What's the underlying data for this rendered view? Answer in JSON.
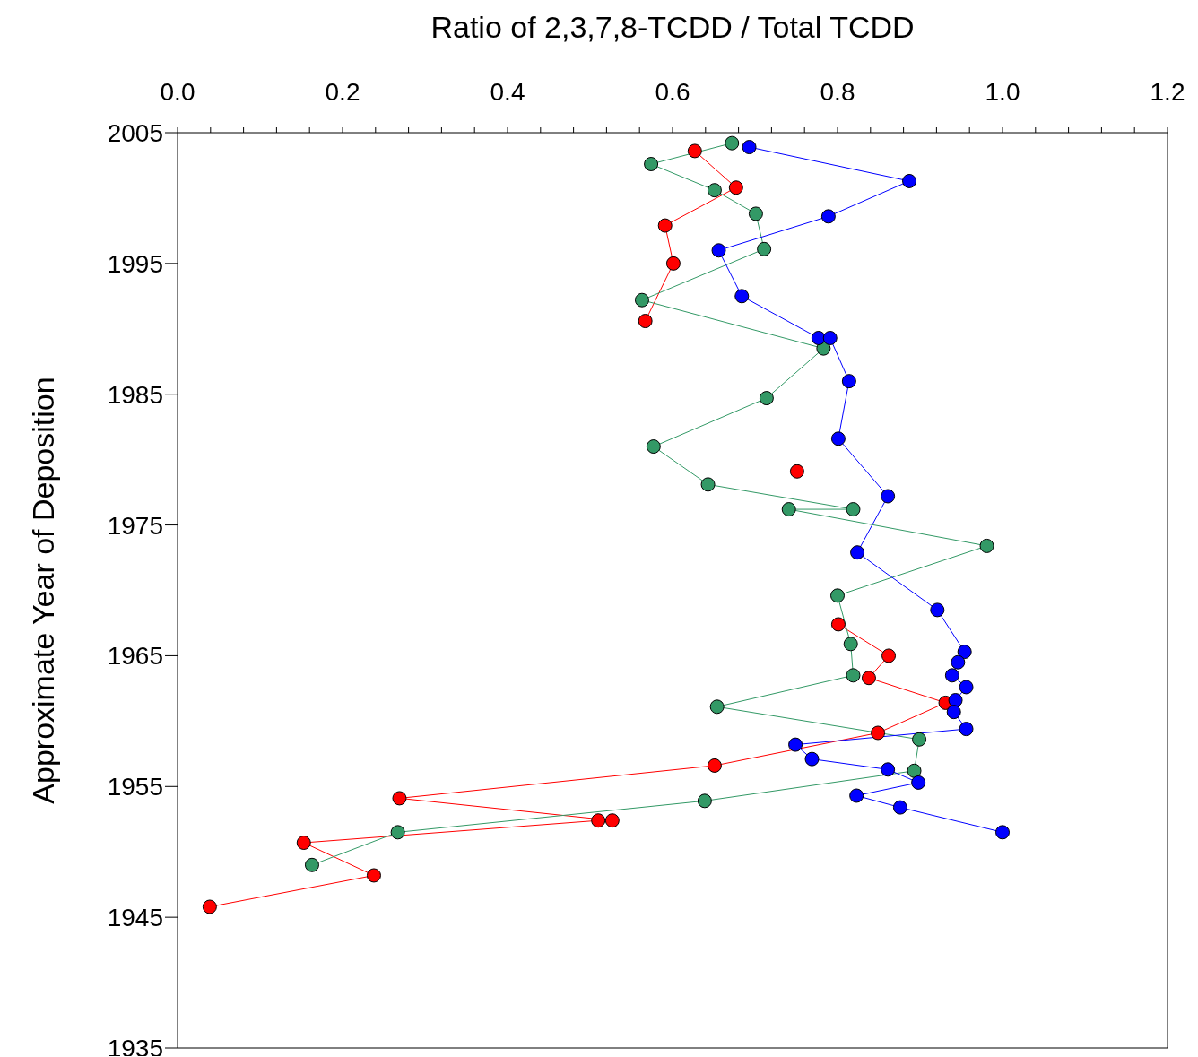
{
  "chart_data": {
    "type": "line",
    "xlabel": "Ratio of 2,3,7,8-TCDD / Total TCDD",
    "ylabel": "Approximate Year of Deposition",
    "marker": "circle",
    "line_style": "solid",
    "grid": false,
    "legend": false,
    "xlim": [
      0,
      1.2
    ],
    "ylim": [
      1935,
      2005
    ],
    "xticks": [
      {
        "value": 0,
        "label": "0.0"
      },
      {
        "value": 0.04,
        "label": null
      },
      {
        "value": 0.08,
        "label": null
      },
      {
        "value": 0.12,
        "label": null
      },
      {
        "value": 0.16,
        "label": null
      },
      {
        "value": 0.2,
        "label": "0.2"
      },
      {
        "value": 0.24,
        "label": null
      },
      {
        "value": 0.28,
        "label": null
      },
      {
        "value": 0.32,
        "label": null
      },
      {
        "value": 0.36,
        "label": null
      },
      {
        "value": 0.4,
        "label": "0.4"
      },
      {
        "value": 0.44,
        "label": null
      },
      {
        "value": 0.48,
        "label": null
      },
      {
        "value": 0.52,
        "label": null
      },
      {
        "value": 0.56,
        "label": null
      },
      {
        "value": 0.6,
        "label": "0.6"
      },
      {
        "value": 0.64,
        "label": null
      },
      {
        "value": 0.68,
        "label": null
      },
      {
        "value": 0.72,
        "label": null
      },
      {
        "value": 0.76,
        "label": null
      },
      {
        "value": 0.8,
        "label": "0.8"
      },
      {
        "value": 0.84,
        "label": null
      },
      {
        "value": 0.88,
        "label": null
      },
      {
        "value": 0.92,
        "label": null
      },
      {
        "value": 0.96,
        "label": null
      },
      {
        "value": 1.0,
        "label": "1.0"
      },
      {
        "value": 1.04,
        "label": null
      },
      {
        "value": 1.08,
        "label": null
      },
      {
        "value": 1.12,
        "label": null
      },
      {
        "value": 1.16,
        "label": null
      },
      {
        "value": 1.2,
        "label": "1.2"
      }
    ],
    "yticks": [
      1935,
      1945,
      1955,
      1965,
      1975,
      1985,
      1995,
      2005
    ],
    "series": [
      {
        "color": "#ff0000",
        "x": [
          0.627,
          0.677,
          0.591,
          0.601,
          0.567,
          null,
          0.751,
          null,
          0.801,
          0.862,
          0.838,
          0.931,
          0.849,
          0.651,
          0.269,
          0.527,
          0.51,
          0.153,
          0.238,
          0.039
        ],
        "values": [
          2003.6,
          2000.8,
          1997.9,
          1995.0,
          1990.6,
          null,
          1979.1,
          null,
          1967.4,
          1965.0,
          1963.3,
          1961.4,
          1959.1,
          1956.6,
          1954.1,
          1952.4,
          1952.4,
          1950.7,
          1948.2,
          1945.8
        ]
      },
      {
        "color": "#339966",
        "x": [
          0.672,
          0.574,
          0.651,
          0.701,
          0.711,
          0.563,
          0.783,
          0.714,
          0.577,
          0.643,
          0.819,
          0.741,
          0.981,
          0.8,
          0.816,
          0.819,
          0.654,
          0.899,
          0.893,
          0.639,
          0.267,
          0.163
        ],
        "values": [
          2004.2,
          2002.6,
          2000.6,
          1998.8,
          1996.1,
          1992.2,
          1988.5,
          1984.7,
          1981.0,
          1978.1,
          1976.2,
          1976.2,
          1973.4,
          1969.6,
          1965.9,
          1963.5,
          1961.1,
          1958.6,
          1956.2,
          1953.9,
          1951.5,
          1949.0
        ]
      },
      {
        "color": "#0000ff",
        "x": [
          0.693,
          0.887,
          0.789,
          0.656,
          0.684,
          0.777,
          0.791,
          0.814,
          0.801,
          0.861,
          0.824,
          0.921,
          0.954,
          0.946,
          0.939,
          0.956,
          0.943,
          0.941,
          0.956,
          0.749,
          0.769,
          0.861,
          0.898,
          0.823,
          0.876,
          1.0
        ],
        "values": [
          2003.9,
          2001.3,
          1998.6,
          1996.0,
          1992.5,
          1989.3,
          1989.3,
          1986.0,
          1981.6,
          1977.2,
          1972.9,
          1968.5,
          1965.3,
          1964.5,
          1963.5,
          1962.6,
          1961.6,
          1960.7,
          1959.4,
          1958.2,
          1957.1,
          1956.3,
          1955.3,
          1954.3,
          1953.4,
          1951.5
        ]
      }
    ]
  }
}
